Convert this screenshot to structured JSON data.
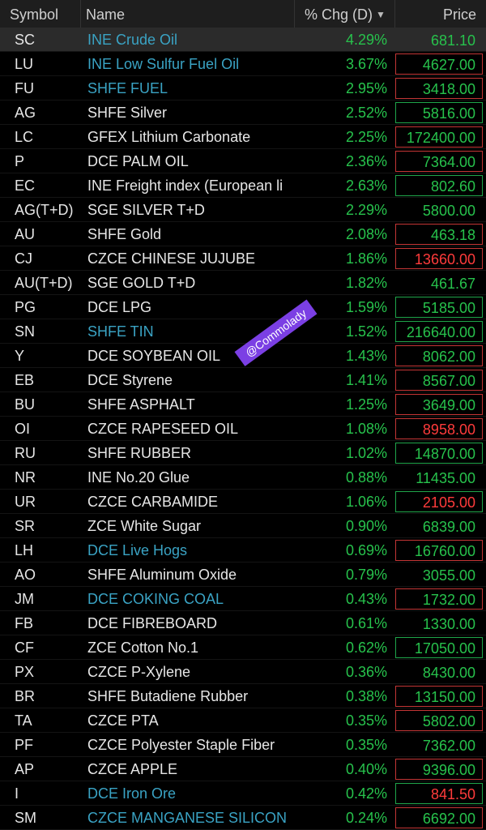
{
  "header": {
    "symbol": "Symbol",
    "name": "Name",
    "chg": "% Chg (D)",
    "price": "Price"
  },
  "watermark": "@Commolady",
  "rows": [
    {
      "symbol": "SC",
      "name": "INE Crude Oil",
      "chg": "4.29%",
      "price": "681.10",
      "link": true,
      "box": "none",
      "red": false,
      "selected": true
    },
    {
      "symbol": "LU",
      "name": "INE Low Sulfur Fuel Oil",
      "chg": "3.67%",
      "price": "4627.00",
      "link": true,
      "box": "red",
      "red": false
    },
    {
      "symbol": "FU",
      "name": "SHFE FUEL",
      "chg": "2.95%",
      "price": "3418.00",
      "link": true,
      "box": "red",
      "red": false
    },
    {
      "symbol": "AG",
      "name": "SHFE Silver",
      "chg": "2.52%",
      "price": "5816.00",
      "link": false,
      "box": "green",
      "red": false
    },
    {
      "symbol": "LC",
      "name": "GFEX Lithium Carbonate",
      "chg": "2.25%",
      "price": "172400.00",
      "link": false,
      "box": "red",
      "red": false
    },
    {
      "symbol": "P",
      "name": "DCE PALM OIL",
      "chg": "2.36%",
      "price": "7364.00",
      "link": false,
      "box": "red",
      "red": false
    },
    {
      "symbol": "EC",
      "name": "INE Freight index (European li",
      "chg": "2.63%",
      "price": "802.60",
      "link": false,
      "box": "green",
      "red": false
    },
    {
      "symbol": "AG(T+D)",
      "name": "SGE SILVER T+D",
      "chg": "2.29%",
      "price": "5800.00",
      "link": false,
      "box": "none",
      "red": false
    },
    {
      "symbol": "AU",
      "name": "SHFE Gold",
      "chg": "2.08%",
      "price": "463.18",
      "link": false,
      "box": "red",
      "red": false
    },
    {
      "symbol": "CJ",
      "name": "CZCE CHINESE JUJUBE",
      "chg": "1.86%",
      "price": "13660.00",
      "link": false,
      "box": "red",
      "red": true
    },
    {
      "symbol": "AU(T+D)",
      "name": "SGE GOLD T+D",
      "chg": "1.82%",
      "price": "461.67",
      "link": false,
      "box": "none",
      "red": false
    },
    {
      "symbol": "PG",
      "name": "DCE LPG",
      "chg": "1.59%",
      "price": "5185.00",
      "link": false,
      "box": "green",
      "red": false
    },
    {
      "symbol": "SN",
      "name": "SHFE TIN",
      "chg": "1.52%",
      "price": "216640.00",
      "link": true,
      "box": "green",
      "red": false
    },
    {
      "symbol": "Y",
      "name": "DCE SOYBEAN OIL",
      "chg": "1.43%",
      "price": "8062.00",
      "link": false,
      "box": "red",
      "red": false
    },
    {
      "symbol": "EB",
      "name": "DCE Styrene",
      "chg": "1.41%",
      "price": "8567.00",
      "link": false,
      "box": "red",
      "red": false
    },
    {
      "symbol": "BU",
      "name": "SHFE ASPHALT",
      "chg": "1.25%",
      "price": "3649.00",
      "link": false,
      "box": "red",
      "red": false
    },
    {
      "symbol": "OI",
      "name": "CZCE RAPESEED OIL",
      "chg": "1.08%",
      "price": "8958.00",
      "link": false,
      "box": "red",
      "red": true
    },
    {
      "symbol": "RU",
      "name": "SHFE RUBBER",
      "chg": "1.02%",
      "price": "14870.00",
      "link": false,
      "box": "green",
      "red": false
    },
    {
      "symbol": "NR",
      "name": "INE No.20 Glue",
      "chg": "0.88%",
      "price": "11435.00",
      "link": false,
      "box": "none",
      "red": false
    },
    {
      "symbol": "UR",
      "name": "CZCE CARBAMIDE",
      "chg": "1.06%",
      "price": "2105.00",
      "link": false,
      "box": "green",
      "red": true
    },
    {
      "symbol": "SR",
      "name": "ZCE White Sugar",
      "chg": "0.90%",
      "price": "6839.00",
      "link": false,
      "box": "none",
      "red": false
    },
    {
      "symbol": "LH",
      "name": "DCE Live Hogs",
      "chg": "0.69%",
      "price": "16760.00",
      "link": true,
      "box": "red",
      "red": false
    },
    {
      "symbol": "AO",
      "name": "SHFE Aluminum Oxide",
      "chg": "0.79%",
      "price": "3055.00",
      "link": false,
      "box": "none",
      "red": false
    },
    {
      "symbol": "JM",
      "name": "DCE COKING COAL",
      "chg": "0.43%",
      "price": "1732.00",
      "link": true,
      "box": "red",
      "red": false
    },
    {
      "symbol": "FB",
      "name": "DCE FIBREBOARD",
      "chg": "0.61%",
      "price": "1330.00",
      "link": false,
      "box": "none",
      "red": false
    },
    {
      "symbol": "CF",
      "name": "ZCE Cotton No.1",
      "chg": "0.62%",
      "price": "17050.00",
      "link": false,
      "box": "green",
      "red": false
    },
    {
      "symbol": "PX",
      "name": "CZCE P-Xylene",
      "chg": "0.36%",
      "price": "8430.00",
      "link": false,
      "box": "none",
      "red": false
    },
    {
      "symbol": "BR",
      "name": "SHFE Butadiene Rubber",
      "chg": "0.38%",
      "price": "13150.00",
      "link": false,
      "box": "red",
      "red": false
    },
    {
      "symbol": "TA",
      "name": "CZCE PTA",
      "chg": "0.35%",
      "price": "5802.00",
      "link": false,
      "box": "red",
      "red": false
    },
    {
      "symbol": "PF",
      "name": "CZCE Polyester Staple Fiber",
      "chg": "0.35%",
      "price": "7362.00",
      "link": false,
      "box": "none",
      "red": false
    },
    {
      "symbol": "AP",
      "name": "CZCE APPLE",
      "chg": "0.40%",
      "price": "9396.00",
      "link": false,
      "box": "red",
      "red": false
    },
    {
      "symbol": "I",
      "name": "DCE Iron Ore",
      "chg": "0.42%",
      "price": "841.50",
      "link": true,
      "box": "green",
      "red": true
    },
    {
      "symbol": "SM",
      "name": "CZCE MANGANESE SILICON",
      "chg": "0.24%",
      "price": "6692.00",
      "link": true,
      "box": "red",
      "red": false
    }
  ]
}
